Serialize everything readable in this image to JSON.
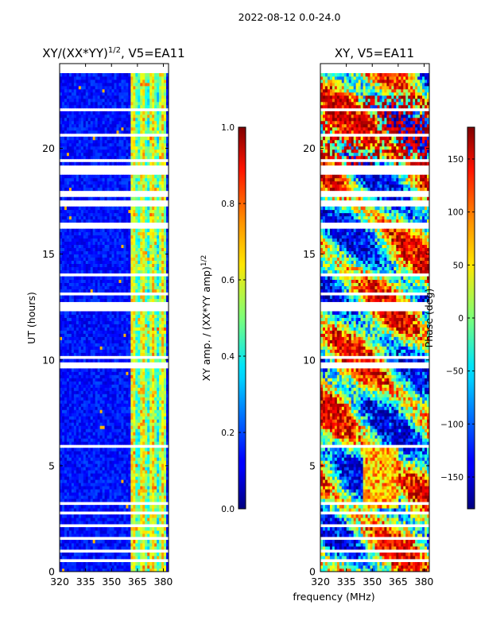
{
  "chart_data": {
    "suptitle": "2022-08-12 0.0-24.0",
    "xlabel": "frequency (MHz)",
    "panels": [
      {
        "type": "heatmap",
        "title": "XY/(XX*YY)",
        "title_sup": "1/2",
        "title_suffix": ", V5=EA11",
        "ylabel": "UT (hours)",
        "xlim": [
          320,
          383
        ],
        "ylim": [
          0,
          24
        ],
        "xticks": [
          "320",
          "335",
          "350",
          "365",
          "380"
        ],
        "yticks": [
          "0",
          "5",
          "10",
          "15",
          "20"
        ],
        "colorbar": {
          "label": "XY amp. / (XX*YY amp)",
          "label_sup": "1/2",
          "range": [
            0.0,
            1.0
          ],
          "ticks": [
            "0.0",
            "0.2",
            "0.4",
            "0.6",
            "0.8",
            "1.0"
          ],
          "colormap": "jet"
        }
      },
      {
        "type": "heatmap",
        "title": "XY, V5=EA11",
        "xlim": [
          320,
          383
        ],
        "ylim": [
          0,
          24
        ],
        "xticks": [
          "320",
          "335",
          "350",
          "365",
          "380"
        ],
        "yticks": [
          "0",
          "5",
          "10",
          "15",
          "20"
        ],
        "colorbar": {
          "label": "Phase (deg)",
          "range": [
            -180,
            180
          ],
          "ticks": [
            "−150",
            "−100",
            "−50",
            "0",
            "50",
            "100",
            "150"
          ],
          "colormap": "jet"
        }
      }
    ],
    "flagged_hours": [
      [
        23.6,
        24.0
      ],
      [
        22.45,
        22.55
      ],
      [
        21.8,
        21.95
      ],
      [
        20.6,
        20.7
      ],
      [
        19.35,
        19.5
      ],
      [
        18.75,
        19.2
      ],
      [
        17.75,
        18.0
      ],
      [
        17.3,
        17.5
      ],
      [
        16.2,
        16.45
      ],
      [
        14.0,
        14.1
      ],
      [
        13.05,
        13.2
      ],
      [
        12.3,
        12.8
      ],
      [
        10.05,
        10.15
      ],
      [
        9.65,
        9.85
      ],
      [
        8.95,
        9.05
      ],
      [
        8.5,
        8.6
      ],
      [
        7.75,
        7.85
      ],
      [
        5.85,
        5.95
      ],
      [
        5.05,
        5.15
      ],
      [
        4.6,
        4.7
      ],
      [
        3.55,
        3.65
      ],
      [
        3.2,
        3.3
      ],
      [
        2.75,
        2.85
      ],
      [
        2.15,
        2.25
      ],
      [
        1.55,
        1.65
      ],
      [
        0.95,
        1.05
      ],
      [
        0.45,
        0.55
      ]
    ],
    "rfi_band_mhz": [
      361,
      381
    ]
  }
}
